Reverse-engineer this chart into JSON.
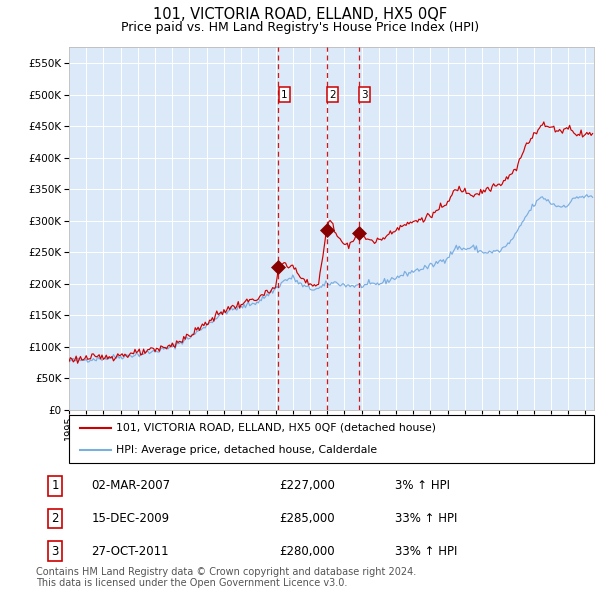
{
  "title": "101, VICTORIA ROAD, ELLAND, HX5 0QF",
  "subtitle": "Price paid vs. HM Land Registry's House Price Index (HPI)",
  "legend_label_red": "101, VICTORIA ROAD, ELLAND, HX5 0QF (detached house)",
  "legend_label_blue": "HPI: Average price, detached house, Calderdale",
  "transactions": [
    {
      "num": 1,
      "date": "02-MAR-2007",
      "price": 227000,
      "pct": "3%",
      "dir": "↑"
    },
    {
      "num": 2,
      "date": "15-DEC-2009",
      "price": 285000,
      "pct": "33%",
      "dir": "↑"
    },
    {
      "num": 3,
      "date": "27-OCT-2011",
      "price": 280000,
      "pct": "33%",
      "dir": "↑"
    }
  ],
  "transaction_dates_decimal": [
    2007.17,
    2009.96,
    2011.82
  ],
  "background_color": "#dce9f8",
  "plot_bg_color": "#dce9f8",
  "red_line_color": "#cc0000",
  "blue_line_color": "#7aade0",
  "marker_color": "#880000",
  "dashed_line_color": "#cc0000",
  "grid_color": "#ffffff",
  "ylim": [
    0,
    575000
  ],
  "xlim_start": 1995.0,
  "xlim_end": 2025.5,
  "yticks": [
    0,
    50000,
    100000,
    150000,
    200000,
    250000,
    300000,
    350000,
    400000,
    450000,
    500000,
    550000
  ],
  "copyright_text": "Contains HM Land Registry data © Crown copyright and database right 2024.\nThis data is licensed under the Open Government Licence v3.0.",
  "footnote_fontsize": 7,
  "title_fontsize": 10.5,
  "subtitle_fontsize": 9
}
